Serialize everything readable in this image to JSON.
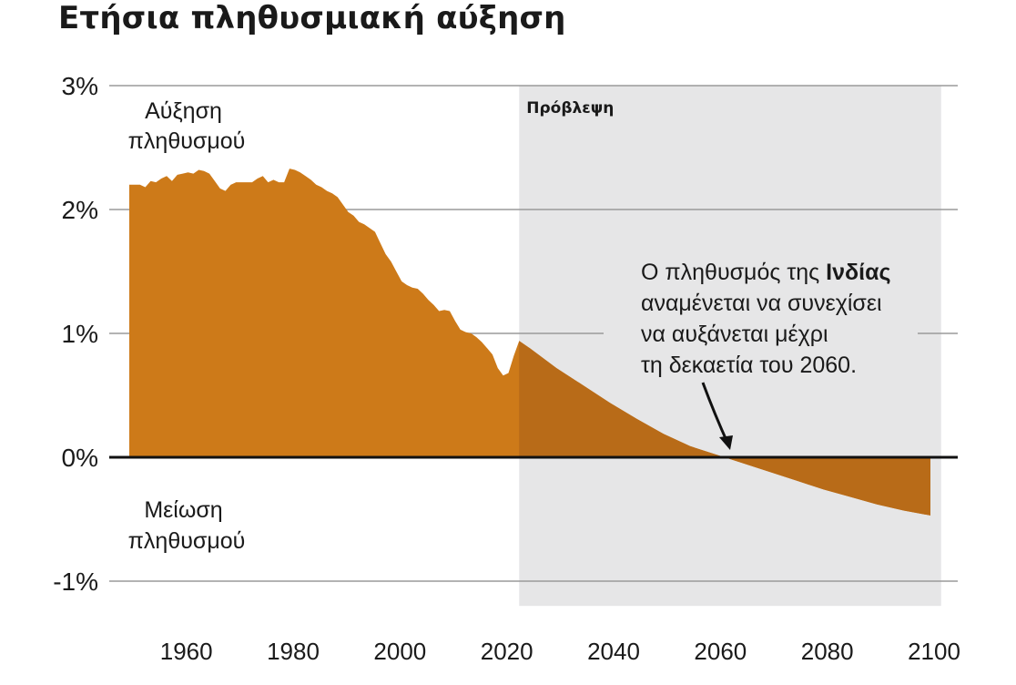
{
  "title": "Ετήσια πληθυσμιακή αύξηση",
  "colors": {
    "area": "#cd7a19",
    "area_forecast": "#b86b18",
    "forecast_band": "#e6e6e7",
    "grid": "#9a9a9a",
    "zero_line": "#111111"
  },
  "chart_data": {
    "type": "area",
    "xlim": [
      1950,
      2100
    ],
    "ylim": [
      -1,
      3
    ],
    "y_ticks": [
      "3%",
      "2%",
      "1%",
      "0%",
      "-1%"
    ],
    "y_tick_values": [
      3,
      2,
      1,
      0,
      -1
    ],
    "x_ticks": [
      "1960",
      "1980",
      "2000",
      "2020",
      "2040",
      "2060",
      "2080",
      "2100"
    ],
    "x_tick_values": [
      1960,
      1980,
      2000,
      2020,
      2040,
      2060,
      2080,
      2100
    ],
    "grid": true,
    "forecast_region": {
      "label": "Πρόβλεψη",
      "from": 2023,
      "to": 2102
    },
    "region_labels": {
      "growth": [
        "Αύξηση",
        "πληθυσμού"
      ],
      "decline": [
        "Μείωση",
        "πληθυσμού"
      ]
    },
    "annotation": {
      "lines": [
        {
          "pre": "Ο πληθυσμός της ",
          "bold": "Ινδίας",
          "post": ""
        },
        {
          "pre": "αναμένεται να συνεχίσει",
          "bold": "",
          "post": ""
        },
        {
          "pre": "να αυξάνεται μέχρι",
          "bold": "",
          "post": ""
        },
        {
          "pre": "τη δεκαετία του 2060.",
          "bold": "",
          "post": ""
        }
      ],
      "arrow_target": [
        2065,
        0
      ]
    },
    "series": [
      {
        "values": [
          [
            1950,
            2.2
          ],
          [
            1951,
            2.2
          ],
          [
            1952,
            2.2
          ],
          [
            1953,
            2.18
          ],
          [
            1954,
            2.23
          ],
          [
            1955,
            2.22
          ],
          [
            1956,
            2.25
          ],
          [
            1957,
            2.27
          ],
          [
            1958,
            2.23
          ],
          [
            1959,
            2.28
          ],
          [
            1960,
            2.29
          ],
          [
            1961,
            2.3
          ],
          [
            1962,
            2.29
          ],
          [
            1963,
            2.32
          ],
          [
            1964,
            2.31
          ],
          [
            1965,
            2.29
          ],
          [
            1966,
            2.23
          ],
          [
            1967,
            2.17
          ],
          [
            1968,
            2.15
          ],
          [
            1969,
            2.2
          ],
          [
            1970,
            2.22
          ],
          [
            1971,
            2.22
          ],
          [
            1972,
            2.22
          ],
          [
            1973,
            2.22
          ],
          [
            1974,
            2.25
          ],
          [
            1975,
            2.27
          ],
          [
            1976,
            2.22
          ],
          [
            1977,
            2.24
          ],
          [
            1978,
            2.22
          ],
          [
            1979,
            2.22
          ],
          [
            1980,
            2.33
          ],
          [
            1981,
            2.32
          ],
          [
            1982,
            2.3
          ],
          [
            1983,
            2.27
          ],
          [
            1984,
            2.24
          ],
          [
            1985,
            2.2
          ],
          [
            1986,
            2.18
          ],
          [
            1987,
            2.15
          ],
          [
            1988,
            2.13
          ],
          [
            1989,
            2.1
          ],
          [
            1990,
            2.04
          ],
          [
            1991,
            1.98
          ],
          [
            1992,
            1.95
          ],
          [
            1993,
            1.9
          ],
          [
            1994,
            1.88
          ],
          [
            1995,
            1.85
          ],
          [
            1996,
            1.82
          ],
          [
            1997,
            1.73
          ],
          [
            1998,
            1.64
          ],
          [
            1999,
            1.58
          ],
          [
            2000,
            1.5
          ],
          [
            2001,
            1.42
          ],
          [
            2002,
            1.39
          ],
          [
            2003,
            1.37
          ],
          [
            2004,
            1.36
          ],
          [
            2005,
            1.32
          ],
          [
            2006,
            1.27
          ],
          [
            2007,
            1.23
          ],
          [
            2008,
            1.18
          ],
          [
            2009,
            1.19
          ],
          [
            2010,
            1.18
          ],
          [
            2011,
            1.1
          ],
          [
            2012,
            1.03
          ],
          [
            2013,
            1.01
          ],
          [
            2014,
            1.0
          ],
          [
            2015,
            0.97
          ],
          [
            2016,
            0.93
          ],
          [
            2017,
            0.88
          ],
          [
            2018,
            0.83
          ],
          [
            2019,
            0.72
          ],
          [
            2020,
            0.66
          ],
          [
            2021,
            0.68
          ],
          [
            2022,
            0.82
          ],
          [
            2023,
            0.94
          ],
          [
            2025,
            0.88
          ],
          [
            2030,
            0.72
          ],
          [
            2035,
            0.58
          ],
          [
            2040,
            0.44
          ],
          [
            2045,
            0.31
          ],
          [
            2050,
            0.19
          ],
          [
            2055,
            0.09
          ],
          [
            2060,
            0.02
          ],
          [
            2065,
            -0.05
          ],
          [
            2070,
            -0.12
          ],
          [
            2075,
            -0.19
          ],
          [
            2080,
            -0.26
          ],
          [
            2085,
            -0.32
          ],
          [
            2090,
            -0.38
          ],
          [
            2095,
            -0.43
          ],
          [
            2100,
            -0.47
          ]
        ]
      }
    ]
  }
}
